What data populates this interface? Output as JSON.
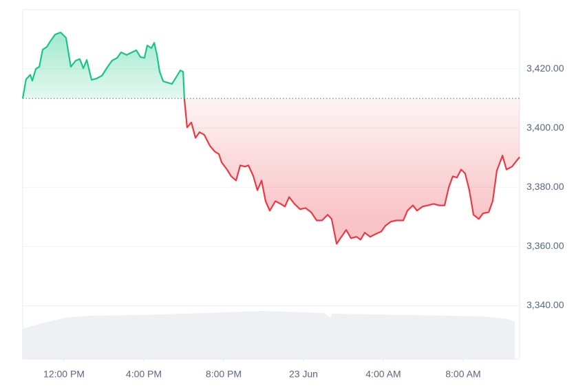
{
  "chart_data": {
    "type": "line",
    "x": [
      -2.07,
      -1.9,
      -1.69,
      -1.59,
      -1.41,
      -1.24,
      -1.07,
      -0.86,
      -0.69,
      -0.45,
      -0.17,
      0.1,
      0.34,
      0.59,
      0.79,
      0.97,
      1.14,
      1.38,
      1.62,
      1.9,
      2.17,
      2.41,
      2.66,
      2.86,
      3.14,
      3.41,
      3.62,
      3.83,
      4.03,
      4.17,
      4.38,
      4.52,
      4.66,
      4.79,
      4.97,
      5.21,
      5.41,
      5.62,
      5.83,
      5.97,
      6.03,
      6.17,
      6.38,
      6.59,
      6.79,
      7.03,
      7.31,
      7.55,
      7.76,
      7.9,
      8.17,
      8.38,
      8.62,
      8.83,
      9.07,
      9.24,
      9.48,
      9.69,
      9.9,
      10.1,
      10.31,
      10.59,
      10.86,
      11.07,
      11.28,
      11.55,
      11.83,
      12.1,
      12.38,
      12.66,
      12.93,
      13.21,
      13.41,
      13.66,
      13.9,
      14.14,
      14.38,
      14.66,
      14.86,
      15.07,
      15.34,
      15.62,
      15.9,
      16.1,
      16.38,
      16.66,
      17.0,
      17.21,
      17.48,
      17.69,
      17.97,
      18.24,
      18.52,
      18.79,
      19.07,
      19.28,
      19.48,
      19.69,
      19.9,
      20.1,
      20.31,
      20.52,
      20.79,
      21.0,
      21.28,
      21.48,
      21.69,
      21.97,
      22.17,
      22.45,
      22.72,
      22.83
    ],
    "series": [
      {
        "values": [
          3410,
          3416.5,
          3418,
          3416,
          3420,
          3420.7,
          3426.5,
          3427.4,
          3429.3,
          3431.6,
          3432.3,
          3430.5,
          3420.7,
          3422.8,
          3423.3,
          3420.2,
          3423,
          3416.3,
          3416.7,
          3417.7,
          3420.5,
          3422.8,
          3423.7,
          3425.6,
          3424.7,
          3425.6,
          3426.3,
          3424,
          3423.7,
          3427.9,
          3427,
          3428.8,
          3424.7,
          3419.1,
          3415.8,
          3415.3,
          3414.9,
          3417.2,
          3419.5,
          3419,
          3409.8,
          3400.2,
          3401.9,
          3396.7,
          3398.6,
          3397.7,
          3394,
          3392.1,
          3391.2,
          3388.4,
          3386,
          3383.7,
          3382.3,
          3387.4,
          3387,
          3387.4,
          3383.9,
          3379,
          3382.3,
          3375.3,
          3372.1,
          3375.3,
          3374.4,
          3373.5,
          3376.7,
          3374.4,
          3372.6,
          3373,
          3371.6,
          3368.8,
          3368.8,
          3370.7,
          3369.3,
          3360.9,
          3363.3,
          3365.6,
          3362.8,
          3363.3,
          3362.3,
          3364.7,
          3363.3,
          3364.2,
          3365.1,
          3367,
          3368.4,
          3368.8,
          3368.8,
          3372.1,
          3373.9,
          3372.1,
          3373.5,
          3373.9,
          3374.4,
          3373.9,
          3373.9,
          3380,
          3383.7,
          3383.3,
          3386,
          3384.7,
          3379.1,
          3370.7,
          3369.3,
          3371.2,
          3371.6,
          3375.3,
          3385.6,
          3390.7,
          3386,
          3387,
          3389.3,
          3390.2
        ]
      }
    ],
    "baseline": 3410,
    "up_color": "#16c784",
    "down_color": "#ea3943",
    "xlim": [
      -2.07,
      22.83
    ],
    "xticks": [
      {
        "value": 0,
        "label": "12:00 PM"
      },
      {
        "value": 4,
        "label": "4:00 PM"
      },
      {
        "value": 8,
        "label": "8:00 PM"
      },
      {
        "value": 12,
        "label": "23 Jun"
      },
      {
        "value": 16,
        "label": "4:00 AM"
      },
      {
        "value": 20,
        "label": "8:00 AM"
      }
    ],
    "ylim": [
      3322,
      3440
    ],
    "yticks": [
      {
        "value": 3340,
        "label": "3,340.00"
      },
      {
        "value": 3360,
        "label": "3,360.00"
      },
      {
        "value": 3380,
        "label": "3,380.00"
      },
      {
        "value": 3400,
        "label": "3,400.00"
      },
      {
        "value": 3420,
        "label": "3,420.00"
      }
    ],
    "grid": true
  }
}
